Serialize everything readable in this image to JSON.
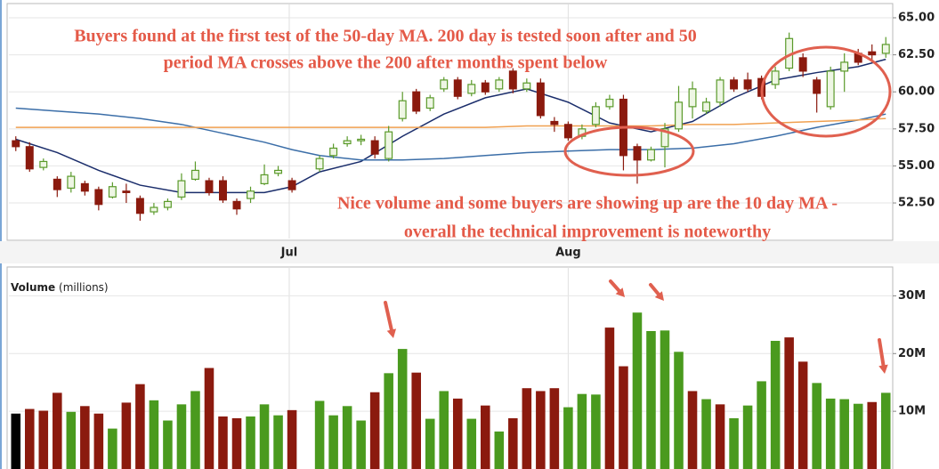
{
  "chart_data": [
    {
      "type": "candlestick",
      "annotations": [
        "Buyers found at the first test of the 50-day MA. 200 day is tested soon after and 50",
        "period MA crosses above the 200 after months spent below",
        "Nice volume and some buyers are showing up are the 10 day MA -",
        "overall the technical improvement is noteworthy"
      ],
      "x": [
        0,
        1,
        2,
        3,
        4,
        5,
        6,
        7,
        8,
        9,
        10,
        11,
        12,
        13,
        14,
        15,
        16,
        17,
        18,
        19,
        20,
        22,
        23,
        24,
        25,
        26,
        27,
        28,
        29,
        30,
        31,
        32,
        33,
        34,
        35,
        36,
        37,
        38,
        39,
        40,
        41,
        42,
        43,
        44,
        45,
        46,
        47,
        48,
        49,
        50,
        51,
        52,
        53,
        54,
        55,
        56,
        57,
        58,
        59,
        60,
        61,
        62,
        63
      ],
      "open": [
        56.7,
        56.3,
        54.9,
        54.1,
        53.5,
        53.8,
        53.4,
        52.9,
        53.3,
        52.8,
        51.9,
        52.2,
        52.9,
        54.1,
        54.0,
        54.0,
        52.6,
        52.8,
        53.8,
        54.5,
        54.0,
        54.8,
        55.7,
        56.5,
        56.7,
        56.7,
        55.5,
        58.2,
        60.0,
        58.9,
        60.2,
        60.8,
        59.9,
        60.6,
        60.2,
        61.4,
        60.2,
        60.6,
        58.0,
        57.8,
        57.0,
        57.8,
        59.0,
        59.5,
        56.3,
        55.4,
        56.3,
        57.5,
        59.0,
        58.7,
        59.3,
        60.8,
        60.8,
        60.9,
        60.5,
        61.6,
        62.3,
        60.8,
        59.0,
        61.4,
        62.6,
        62.7,
        62.6
      ],
      "high": [
        57.0,
        56.6,
        55.5,
        54.3,
        54.6,
        54.0,
        53.6,
        53.9,
        53.8,
        53.0,
        52.5,
        52.8,
        54.5,
        55.3,
        54.2,
        54.3,
        52.8,
        53.6,
        55.1,
        55.0,
        54.2,
        55.7,
        56.5,
        57.0,
        57.1,
        57.0,
        57.7,
        60.0,
        60.2,
        59.8,
        61.0,
        61.0,
        60.8,
        60.8,
        61.0,
        61.6,
        60.9,
        60.9,
        58.3,
        58.0,
        57.8,
        59.3,
        59.8,
        59.8,
        56.5,
        56.3,
        57.9,
        60.4,
        60.7,
        59.6,
        61.0,
        61.0,
        61.3,
        61.1,
        61.7,
        64.0,
        62.6,
        61.0,
        61.7,
        62.6,
        62.9,
        63.2,
        63.7
      ],
      "low": [
        56.0,
        54.6,
        54.7,
        52.9,
        53.2,
        53.0,
        52.0,
        52.8,
        52.5,
        51.3,
        51.7,
        52.0,
        52.7,
        54.0,
        53.0,
        52.5,
        51.7,
        52.5,
        53.7,
        54.3,
        53.2,
        54.6,
        55.5,
        56.3,
        56.4,
        55.5,
        55.3,
        58.0,
        58.5,
        58.7,
        60.0,
        59.5,
        59.7,
        59.8,
        60.0,
        59.9,
        60.0,
        58.2,
        57.3,
        56.7,
        56.8,
        57.6,
        58.8,
        54.7,
        53.8,
        55.3,
        54.9,
        57.3,
        58.2,
        58.5,
        59.0,
        60.0,
        60.0,
        59.5,
        60.2,
        61.4,
        61.0,
        58.6,
        58.8,
        60.0,
        61.8,
        62.0,
        62.3
      ],
      "close": [
        56.3,
        54.8,
        55.3,
        53.4,
        54.3,
        53.3,
        52.4,
        53.6,
        53.2,
        51.8,
        52.2,
        52.6,
        54.0,
        54.7,
        53.2,
        52.7,
        52.1,
        53.3,
        54.4,
        54.7,
        53.4,
        55.5,
        56.2,
        56.7,
        56.8,
        55.8,
        57.3,
        59.4,
        58.7,
        59.6,
        60.8,
        59.7,
        60.5,
        60.0,
        60.8,
        60.2,
        60.6,
        58.4,
        57.8,
        56.9,
        57.5,
        59.0,
        59.5,
        55.7,
        55.4,
        56.1,
        57.5,
        59.3,
        60.2,
        59.3,
        60.8,
        60.2,
        60.2,
        59.7,
        61.4,
        63.6,
        61.4,
        59.9,
        61.4,
        62.0,
        62.0,
        62.5,
        63.2
      ],
      "up_color": "#5a9a2a",
      "down_color": "#8b1a0e",
      "lines": [
        {
          "color": "#1a2d6b",
          "x": [
            0,
            3,
            6,
            9,
            12,
            15,
            18,
            20,
            22,
            25,
            28,
            31,
            34,
            37,
            40,
            43,
            46,
            49,
            52,
            55,
            58,
            61,
            63
          ],
          "values": [
            56.8,
            55.9,
            54.7,
            53.7,
            53.2,
            53.2,
            53.2,
            53.6,
            54.6,
            55.3,
            57.0,
            58.5,
            59.6,
            60.2,
            59.3,
            57.9,
            57.3,
            58.0,
            59.6,
            60.8,
            61.3,
            61.7,
            62.2
          ]
        },
        {
          "color": "#3b6ea8",
          "x": [
            0,
            3,
            6,
            9,
            12,
            15,
            18,
            20,
            22,
            25,
            28,
            31,
            34,
            37,
            40,
            43,
            46,
            49,
            52,
            55,
            58,
            61,
            63
          ],
          "values": [
            58.9,
            58.7,
            58.5,
            58.2,
            57.8,
            57.2,
            56.6,
            56.1,
            55.7,
            55.4,
            55.4,
            55.5,
            55.7,
            55.9,
            56.0,
            56.1,
            56.1,
            56.2,
            56.5,
            57.0,
            57.6,
            58.1,
            58.5
          ]
        },
        {
          "color": "#f0a050",
          "x": [
            0,
            3,
            6,
            9,
            12,
            15,
            18,
            20,
            22,
            25,
            28,
            31,
            34,
            37,
            40,
            43,
            46,
            49,
            52,
            55,
            58,
            61,
            63
          ],
          "values": [
            57.6,
            57.6,
            57.6,
            57.6,
            57.6,
            57.6,
            57.6,
            57.6,
            57.6,
            57.6,
            57.6,
            57.6,
            57.6,
            57.7,
            57.7,
            57.7,
            57.7,
            57.8,
            57.8,
            57.9,
            58.0,
            58.1,
            58.2
          ]
        }
      ],
      "xlim": [
        -0.5,
        63.5
      ],
      "xticks": [
        {
          "value": 19.8,
          "label": "Jul"
        },
        {
          "value": 40,
          "label": "Aug"
        }
      ],
      "ylim": [
        50.1,
        65.9
      ],
      "yticks": [
        {
          "value": 52.5,
          "label": "52.50"
        },
        {
          "value": 55,
          "label": "55.00"
        },
        {
          "value": 57.5,
          "label": "57.50"
        },
        {
          "value": 60,
          "label": "60.00"
        },
        {
          "value": 62.5,
          "label": "62.50"
        },
        {
          "value": 65,
          "label": "65.00"
        }
      ],
      "grid": true
    },
    {
      "type": "bar",
      "title": "Volume",
      "subtitle": "(millions)",
      "x": [
        0,
        1,
        2,
        3,
        4,
        5,
        6,
        7,
        8,
        9,
        10,
        11,
        12,
        13,
        14,
        15,
        16,
        17,
        18,
        19,
        20,
        22,
        23,
        24,
        25,
        26,
        27,
        28,
        29,
        30,
        31,
        32,
        33,
        34,
        35,
        36,
        37,
        38,
        39,
        40,
        41,
        42,
        43,
        44,
        45,
        46,
        47,
        48,
        49,
        50,
        51,
        52,
        53,
        54,
        55,
        56,
        57,
        58,
        59,
        60,
        61,
        62,
        63
      ],
      "values": [
        9.6,
        10.4,
        10.1,
        13.2,
        9.9,
        10.9,
        9.6,
        7.0,
        11.5,
        14.7,
        11.9,
        8.4,
        11.2,
        13.5,
        17.5,
        9.1,
        8.8,
        9.1,
        11.2,
        9.3,
        10.2,
        11.8,
        9.3,
        10.9,
        8.4,
        13.3,
        16.6,
        20.8,
        16.7,
        8.7,
        13.5,
        12.2,
        8.7,
        11.0,
        6.5,
        8.8,
        14.0,
        13.5,
        14.0,
        10.7,
        13.0,
        12.9,
        24.5,
        17.8,
        27.1,
        23.9,
        24.0,
        20.3,
        13.5,
        12.1,
        11.2,
        8.8,
        11.0,
        15.2,
        22.2,
        22.8,
        18.6,
        14.9,
        12.2,
        12.1,
        11.3,
        11.6,
        13.2
      ],
      "colors": [
        "#000000",
        "#8b1a0e",
        "#8b1a0e",
        "#8b1a0e",
        "#4a9a1e",
        "#8b1a0e",
        "#8b1a0e",
        "#4a9a1e",
        "#8b1a0e",
        "#8b1a0e",
        "#4a9a1e",
        "#4a9a1e",
        "#4a9a1e",
        "#4a9a1e",
        "#8b1a0e",
        "#8b1a0e",
        "#8b1a0e",
        "#4a9a1e",
        "#4a9a1e",
        "#4a9a1e",
        "#8b1a0e",
        "#4a9a1e",
        "#4a9a1e",
        "#4a9a1e",
        "#4a9a1e",
        "#8b1a0e",
        "#4a9a1e",
        "#4a9a1e",
        "#8b1a0e",
        "#4a9a1e",
        "#4a9a1e",
        "#8b1a0e",
        "#4a9a1e",
        "#8b1a0e",
        "#4a9a1e",
        "#8b1a0e",
        "#8b1a0e",
        "#8b1a0e",
        "#8b1a0e",
        "#4a9a1e",
        "#4a9a1e",
        "#4a9a1e",
        "#8b1a0e",
        "#8b1a0e",
        "#4a9a1e",
        "#4a9a1e",
        "#4a9a1e",
        "#4a9a1e",
        "#8b1a0e",
        "#4a9a1e",
        "#8b1a0e",
        "#4a9a1e",
        "#4a9a1e",
        "#4a9a1e",
        "#4a9a1e",
        "#8b1a0e",
        "#8b1a0e",
        "#4a9a1e",
        "#4a9a1e",
        "#4a9a1e",
        "#4a9a1e",
        "#8b1a0e",
        "#4a9a1e"
      ],
      "xlim": [
        -0.5,
        63.5
      ],
      "ylim": [
        0,
        35
      ],
      "yticks": [
        {
          "value": 10,
          "label": "10M"
        },
        {
          "value": 20,
          "label": "20M"
        },
        {
          "value": 30,
          "label": "30M"
        }
      ],
      "grid": true
    }
  ]
}
